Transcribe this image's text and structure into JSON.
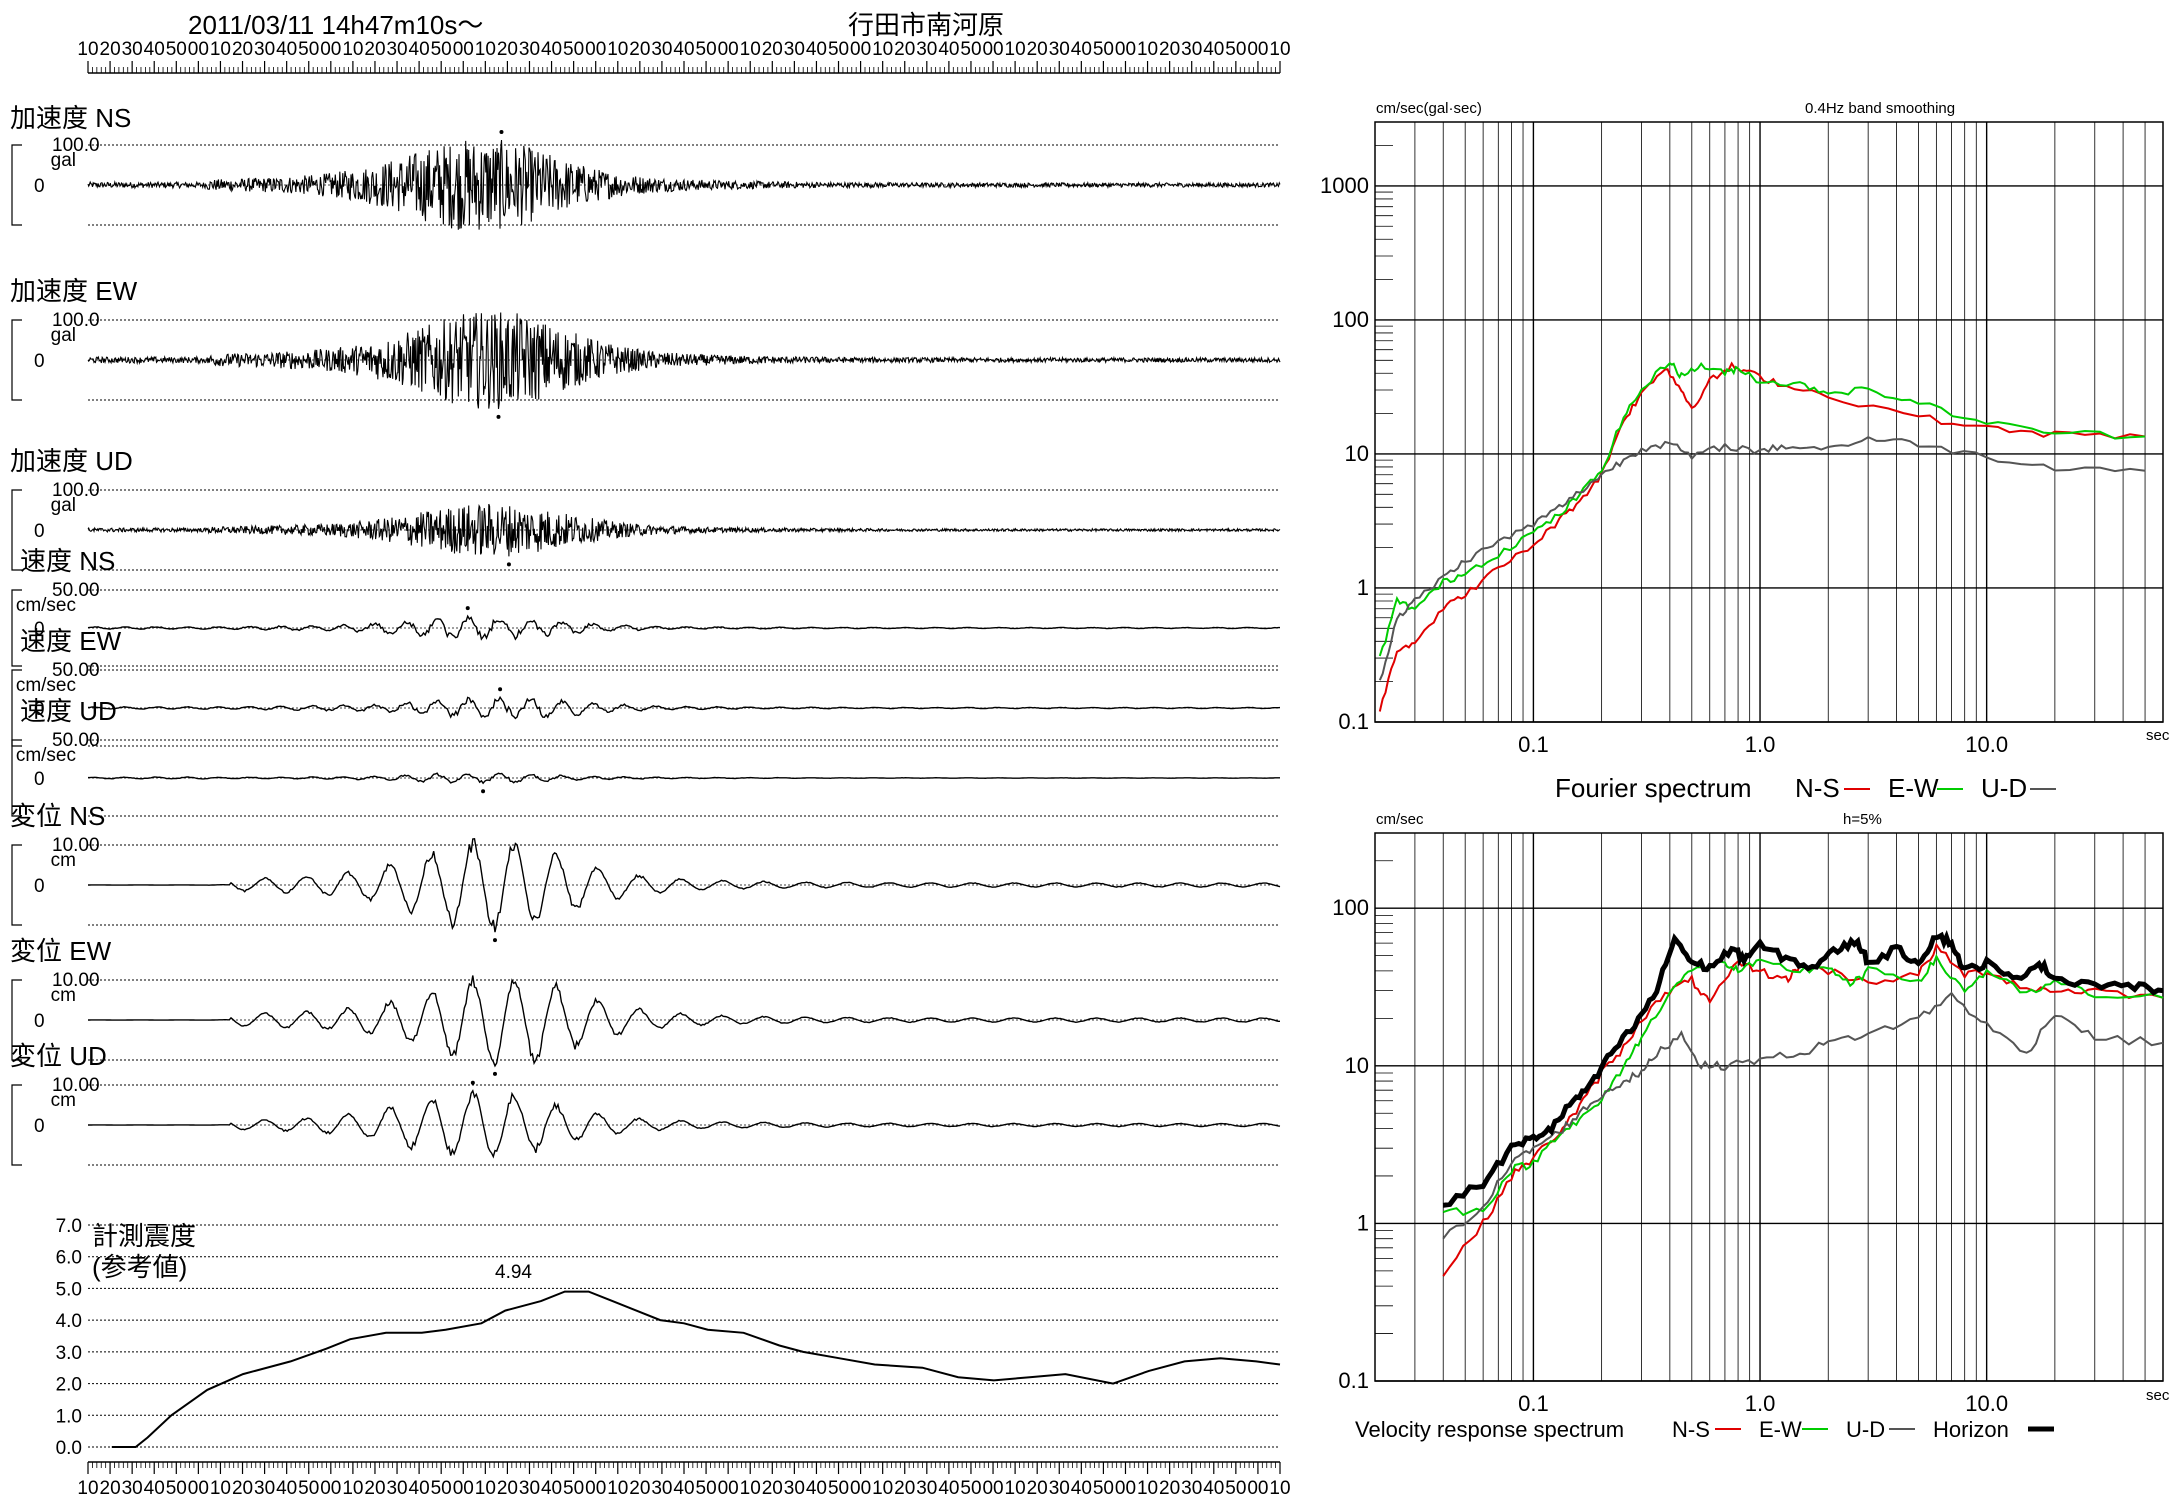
{
  "header": {
    "datetime": "2011/03/11  14h47m10s～",
    "station": "行田市南河原",
    "time_tick_labels": [
      "10",
      "20",
      "30",
      "40",
      "50",
      "00",
      "10",
      "20",
      "30",
      "40",
      "50",
      "00",
      "10",
      "20",
      "30",
      "40",
      "50",
      "00",
      "10",
      "20",
      "30",
      "40",
      "50",
      "00",
      "10",
      "20",
      "30",
      "40",
      "50",
      "00",
      "10",
      "20",
      "30",
      "40",
      "50",
      "00",
      "10",
      "20",
      "30",
      "40",
      "50",
      "00",
      "10",
      "20",
      "30",
      "40",
      "50",
      "00",
      "10",
      "20",
      "30",
      "40",
      "50",
      "00",
      "10"
    ]
  },
  "traces": [
    {
      "id": "acc-ns",
      "title": "加速度 NS",
      "scale": "100.0",
      "unit": "gal",
      "zero": "0",
      "amplitude": 0.95,
      "peak_at": 0.33
    },
    {
      "id": "acc-ew",
      "title": "加速度 EW",
      "scale": "100.0",
      "unit": "gal",
      "zero": "0",
      "amplitude": 1.0,
      "peak_at": 0.34
    },
    {
      "id": "acc-ud",
      "title": "加速度 UD",
      "scale": "100.0",
      "unit": "gal",
      "zero": "0",
      "amplitude": 0.55,
      "peak_at": 0.34
    },
    {
      "id": "vel-ns",
      "title": "速度 NS",
      "scale": "50.00",
      "unit": "cm/sec",
      "zero": "0",
      "amplitude": 0.28,
      "peak_at": 0.33
    },
    {
      "id": "vel-ew",
      "title": "速度 EW",
      "scale": "50.00",
      "unit": "cm/sec",
      "zero": "0",
      "amplitude": 0.28,
      "peak_at": 0.35
    },
    {
      "id": "vel-ud",
      "title": "速度 UD",
      "scale": "50.00",
      "unit": "cm/sec",
      "zero": "0",
      "amplitude": 0.12,
      "peak_at": 0.33
    },
    {
      "id": "disp-ns",
      "title": "変位 NS",
      "scale": "10.00",
      "unit": "cm",
      "zero": "0",
      "amplitude": 1.0,
      "peak_at": 0.34
    },
    {
      "id": "disp-ew",
      "title": "変位 EW",
      "scale": "10.00",
      "unit": "cm",
      "zero": "0",
      "amplitude": 1.0,
      "peak_at": 0.35
    },
    {
      "id": "disp-ud",
      "title": "変位 UD",
      "scale": "10.00",
      "unit": "cm",
      "zero": "0",
      "amplitude": 0.75,
      "peak_at": 0.33
    }
  ],
  "intensity": {
    "title_line1": "計測震度",
    "title_line2": "(参考値)",
    "max_label": "4.94",
    "y_tick_labels": [
      "7.0",
      "6.0",
      "5.0",
      "4.0",
      "3.0",
      "2.0",
      "1.0",
      "0.0"
    ]
  },
  "chart_data": [
    {
      "type": "line",
      "title": "0.4Hz band smoothing",
      "ylabel": "cm/sec(gal·sec)",
      "xlabel": "sec",
      "xscale": "log",
      "yscale": "log",
      "xlim": [
        0.02,
        60
      ],
      "ylim": [
        0.1,
        3000
      ],
      "x_tick_labels": [
        "0.1",
        "1.0",
        "10.0"
      ],
      "y_tick_labels": [
        "1000",
        "100",
        "10",
        "1",
        "0.1"
      ],
      "legend_title": "Fourier spectrum",
      "series": [
        {
          "name": "N-S",
          "color": "#e00000",
          "points": [
            [
              0.021,
              0.12
            ],
            [
              0.025,
              0.35
            ],
            [
              0.03,
              0.4
            ],
            [
              0.04,
              0.7
            ],
            [
              0.05,
              0.9
            ],
            [
              0.07,
              1.4
            ],
            [
              0.1,
              2.1
            ],
            [
              0.13,
              3.2
            ],
            [
              0.16,
              4.5
            ],
            [
              0.2,
              7
            ],
            [
              0.25,
              18
            ],
            [
              0.3,
              28
            ],
            [
              0.38,
              45
            ],
            [
              0.45,
              30
            ],
            [
              0.5,
              22
            ],
            [
              0.6,
              35
            ],
            [
              0.75,
              45
            ],
            [
              0.9,
              40
            ],
            [
              1.2,
              34
            ],
            [
              2,
              27
            ],
            [
              5,
              19
            ],
            [
              10,
              15.5
            ],
            [
              20,
              14
            ],
            [
              50,
              13.5
            ]
          ]
        },
        {
          "name": "E-W",
          "color": "#00cc00",
          "points": [
            [
              0.021,
              0.3
            ],
            [
              0.025,
              0.8
            ],
            [
              0.03,
              0.7
            ],
            [
              0.04,
              1.1
            ],
            [
              0.05,
              1.3
            ],
            [
              0.07,
              1.8
            ],
            [
              0.1,
              2.6
            ],
            [
              0.13,
              3.5
            ],
            [
              0.16,
              5
            ],
            [
              0.2,
              7.5
            ],
            [
              0.25,
              19
            ],
            [
              0.3,
              30
            ],
            [
              0.4,
              50
            ],
            [
              0.45,
              38
            ],
            [
              0.55,
              46
            ],
            [
              0.7,
              40
            ],
            [
              0.8,
              44
            ],
            [
              1,
              35
            ],
            [
              1.5,
              33
            ],
            [
              2,
              29
            ],
            [
              3,
              30
            ],
            [
              5,
              24
            ],
            [
              10,
              17
            ],
            [
              20,
              14.5
            ],
            [
              50,
              13.5
            ]
          ]
        },
        {
          "name": "U-D",
          "color": "#555555",
          "points": [
            [
              0.021,
              0.2
            ],
            [
              0.025,
              0.6
            ],
            [
              0.03,
              0.8
            ],
            [
              0.04,
              1.2
            ],
            [
              0.05,
              1.6
            ],
            [
              0.07,
              2.2
            ],
            [
              0.1,
              3
            ],
            [
              0.13,
              4
            ],
            [
              0.16,
              5.2
            ],
            [
              0.2,
              7
            ],
            [
              0.25,
              9
            ],
            [
              0.3,
              11
            ],
            [
              0.4,
              12
            ],
            [
              0.5,
              9.5
            ],
            [
              0.7,
              11.5
            ],
            [
              1,
              10.5
            ],
            [
              1.3,
              11.5
            ],
            [
              2,
              11
            ],
            [
              3,
              13
            ],
            [
              5,
              12
            ],
            [
              10,
              9.5
            ],
            [
              20,
              8
            ],
            [
              50,
              7.5
            ]
          ]
        }
      ]
    },
    {
      "type": "line",
      "title": "h=5%",
      "ylabel": "cm/sec",
      "xlabel": "sec",
      "xscale": "log",
      "yscale": "log",
      "xlim": [
        0.02,
        60
      ],
      "ylim": [
        0.1,
        300
      ],
      "x_tick_labels": [
        "0.1",
        "1.0",
        "10.0"
      ],
      "y_tick_labels": [
        "100",
        "10",
        "1",
        "0.1"
      ],
      "legend_title": "Velocity response spectrum",
      "series": [
        {
          "name": "N-S",
          "color": "#e00000",
          "width": 2,
          "points": [
            [
              0.04,
              0.48
            ],
            [
              0.06,
              1
            ],
            [
              0.08,
              2
            ],
            [
              0.1,
              2.6
            ],
            [
              0.13,
              3.8
            ],
            [
              0.16,
              5.5
            ],
            [
              0.2,
              9
            ],
            [
              0.25,
              13
            ],
            [
              0.3,
              20
            ],
            [
              0.4,
              30
            ],
            [
              0.5,
              35
            ],
            [
              0.6,
              25
            ],
            [
              0.8,
              45
            ],
            [
              1,
              40
            ],
            [
              1.3,
              35
            ],
            [
              1.5,
              43
            ],
            [
              2,
              40
            ],
            [
              3,
              34
            ],
            [
              5,
              38
            ],
            [
              6,
              56
            ],
            [
              8,
              38
            ],
            [
              10,
              40
            ],
            [
              15,
              31
            ],
            [
              20,
              30
            ],
            [
              30,
              30
            ],
            [
              60,
              27
            ]
          ]
        },
        {
          "name": "E-W",
          "color": "#00cc00",
          "width": 2,
          "points": [
            [
              0.04,
              1.2
            ],
            [
              0.06,
              1.2
            ],
            [
              0.08,
              2.2
            ],
            [
              0.1,
              2.4
            ],
            [
              0.13,
              3.8
            ],
            [
              0.16,
              4.5
            ],
            [
              0.2,
              6
            ],
            [
              0.25,
              10
            ],
            [
              0.3,
              15
            ],
            [
              0.4,
              30
            ],
            [
              0.5,
              40
            ],
            [
              0.7,
              45
            ],
            [
              0.8,
              40
            ],
            [
              1,
              45
            ],
            [
              1.5,
              40
            ],
            [
              2,
              43
            ],
            [
              2.5,
              32
            ],
            [
              3,
              40
            ],
            [
              5,
              35
            ],
            [
              6,
              47
            ],
            [
              8,
              30
            ],
            [
              10,
              40
            ],
            [
              15,
              28
            ],
            [
              20,
              34
            ],
            [
              30,
              28
            ],
            [
              60,
              27
            ]
          ]
        },
        {
          "name": "U-D",
          "color": "#555555",
          "width": 2,
          "points": [
            [
              0.04,
              0.8
            ],
            [
              0.06,
              1.3
            ],
            [
              0.08,
              2.4
            ],
            [
              0.1,
              3
            ],
            [
              0.13,
              3.8
            ],
            [
              0.16,
              5
            ],
            [
              0.2,
              6.5
            ],
            [
              0.25,
              8
            ],
            [
              0.3,
              9
            ],
            [
              0.35,
              12
            ],
            [
              0.45,
              16
            ],
            [
              0.55,
              10
            ],
            [
              0.7,
              10
            ],
            [
              1,
              11
            ],
            [
              1.5,
              12
            ],
            [
              2,
              14
            ],
            [
              3,
              16
            ],
            [
              5,
              20
            ],
            [
              7,
              28
            ],
            [
              10,
              18
            ],
            [
              15,
              12
            ],
            [
              20,
              22
            ],
            [
              30,
              15
            ],
            [
              60,
              14
            ]
          ]
        },
        {
          "name": "Horizon",
          "color": "#000000",
          "width": 5,
          "points": [
            [
              0.04,
              1.3
            ],
            [
              0.06,
              1.8
            ],
            [
              0.08,
              3
            ],
            [
              0.1,
              3.5
            ],
            [
              0.12,
              4
            ],
            [
              0.15,
              6
            ],
            [
              0.18,
              7.5
            ],
            [
              0.22,
              12
            ],
            [
              0.28,
              18
            ],
            [
              0.35,
              30
            ],
            [
              0.42,
              65
            ],
            [
              0.5,
              45
            ],
            [
              0.6,
              42
            ],
            [
              0.75,
              55
            ],
            [
              0.85,
              48
            ],
            [
              1,
              58
            ],
            [
              1.3,
              48
            ],
            [
              1.7,
              42
            ],
            [
              2.2,
              55
            ],
            [
              2.7,
              62
            ],
            [
              3,
              45
            ],
            [
              4,
              55
            ],
            [
              5,
              45
            ],
            [
              6,
              68
            ],
            [
              7,
              60
            ],
            [
              8,
              40
            ],
            [
              10,
              45
            ],
            [
              13,
              35
            ],
            [
              17,
              45
            ],
            [
              20,
              36
            ],
            [
              30,
              33
            ],
            [
              45,
              32
            ],
            [
              60,
              30
            ]
          ]
        }
      ]
    },
    {
      "type": "line",
      "title": "計測震度 (参考値)",
      "ylim": [
        0,
        7
      ],
      "max": 4.94,
      "points": [
        [
          0.02,
          0
        ],
        [
          0.04,
          0
        ],
        [
          0.05,
          0.3
        ],
        [
          0.07,
          1.0
        ],
        [
          0.1,
          1.8
        ],
        [
          0.13,
          2.3
        ],
        [
          0.17,
          2.7
        ],
        [
          0.2,
          3.1
        ],
        [
          0.22,
          3.4
        ],
        [
          0.25,
          3.6
        ],
        [
          0.28,
          3.6
        ],
        [
          0.3,
          3.7
        ],
        [
          0.33,
          3.9
        ],
        [
          0.35,
          4.3
        ],
        [
          0.38,
          4.6
        ],
        [
          0.4,
          4.9
        ],
        [
          0.42,
          4.9
        ],
        [
          0.44,
          4.6
        ],
        [
          0.46,
          4.3
        ],
        [
          0.48,
          4.0
        ],
        [
          0.5,
          3.9
        ],
        [
          0.52,
          3.7
        ],
        [
          0.55,
          3.6
        ],
        [
          0.58,
          3.2
        ],
        [
          0.6,
          3.0
        ],
        [
          0.63,
          2.8
        ],
        [
          0.66,
          2.6
        ],
        [
          0.7,
          2.5
        ],
        [
          0.73,
          2.2
        ],
        [
          0.76,
          2.1
        ],
        [
          0.79,
          2.2
        ],
        [
          0.82,
          2.3
        ],
        [
          0.86,
          2.0
        ],
        [
          0.89,
          2.4
        ],
        [
          0.92,
          2.7
        ],
        [
          0.95,
          2.8
        ],
        [
          0.98,
          2.7
        ],
        [
          1.0,
          2.6
        ]
      ]
    }
  ]
}
